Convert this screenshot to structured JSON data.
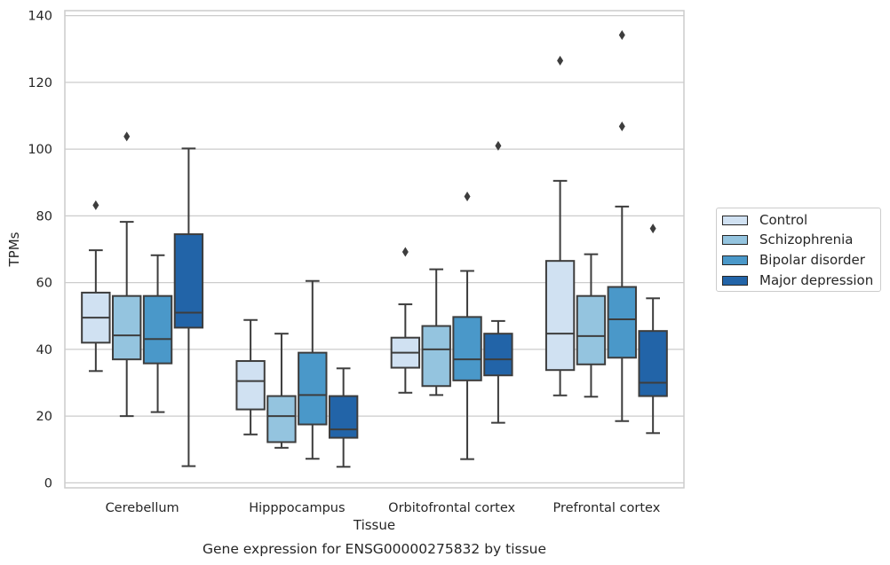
{
  "chart_data": {
    "type": "boxplot",
    "title": "Gene expression for ENSG00000275832 by tissue",
    "xlabel": "Tissue",
    "ylabel": "TPMs",
    "ylim": [
      -1.5,
      141.5
    ],
    "yticks": [
      0,
      20,
      40,
      60,
      80,
      100,
      120,
      140
    ],
    "grid": true,
    "legend_position": "right",
    "categories": [
      "Cerebellum",
      "Hipppocampus",
      "Orbitofrontal cortex",
      "Prefrontal cortex"
    ],
    "series": [
      {
        "name": "Control",
        "color": "#d0e1f2",
        "boxes": [
          {
            "whisker_low": 33.5,
            "q1": 42,
            "median": 49.5,
            "q3": 57,
            "whisker_high": 69.7,
            "outliers": [
              83.2
            ]
          },
          {
            "whisker_low": 14.5,
            "q1": 22,
            "median": 30.5,
            "q3": 36.5,
            "whisker_high": 48.8,
            "outliers": []
          },
          {
            "whisker_low": 27,
            "q1": 34.5,
            "median": 39,
            "q3": 43.5,
            "whisker_high": 53.5,
            "outliers": [
              69.2
            ]
          },
          {
            "whisker_low": 26.2,
            "q1": 33.8,
            "median": 44.7,
            "q3": 66.5,
            "whisker_high": 90.5,
            "outliers": [
              126.5
            ]
          }
        ]
      },
      {
        "name": "Schizophrenia",
        "color": "#94c4df",
        "boxes": [
          {
            "whisker_low": 20,
            "q1": 37,
            "median": 44.2,
            "q3": 56,
            "whisker_high": 78.2,
            "outliers": [
              103.8
            ]
          },
          {
            "whisker_low": 10.5,
            "q1": 12.2,
            "median": 20,
            "q3": 26,
            "whisker_high": 44.7,
            "outliers": []
          },
          {
            "whisker_low": 26.3,
            "q1": 29,
            "median": 40,
            "q3": 47,
            "whisker_high": 64,
            "outliers": []
          },
          {
            "whisker_low": 25.8,
            "q1": 35.5,
            "median": 44,
            "q3": 56,
            "whisker_high": 68.5,
            "outliers": []
          }
        ]
      },
      {
        "name": "Bipolar disorder",
        "color": "#4a98c9",
        "boxes": [
          {
            "whisker_low": 21.2,
            "q1": 35.8,
            "median": 43.1,
            "q3": 56,
            "whisker_high": 68.2,
            "outliers": []
          },
          {
            "whisker_low": 7.2,
            "q1": 17.5,
            "median": 26.3,
            "q3": 39,
            "whisker_high": 60.5,
            "outliers": []
          },
          {
            "whisker_low": 7.1,
            "q1": 30.7,
            "median": 37,
            "q3": 49.7,
            "whisker_high": 63.5,
            "outliers": [
              85.8
            ]
          },
          {
            "whisker_low": 18.5,
            "q1": 37.5,
            "median": 49,
            "q3": 58.7,
            "whisker_high": 82.8,
            "outliers": [
              106.8,
              134.2
            ]
          }
        ]
      },
      {
        "name": "Major depression",
        "color": "#2264a8",
        "boxes": [
          {
            "whisker_low": 5,
            "q1": 46.5,
            "median": 51,
            "q3": 74.5,
            "whisker_high": 100.2,
            "outliers": []
          },
          {
            "whisker_low": 4.8,
            "q1": 13.5,
            "median": 16,
            "q3": 26,
            "whisker_high": 34.3,
            "outliers": []
          },
          {
            "whisker_low": 18,
            "q1": 32.2,
            "median": 37,
            "q3": 44.7,
            "whisker_high": 48.5,
            "outliers": [
              101
            ]
          },
          {
            "whisker_low": 14.9,
            "q1": 26,
            "median": 30,
            "q3": 45.5,
            "whisker_high": 55.3,
            "outliers": [
              76.2
            ]
          }
        ]
      }
    ]
  }
}
